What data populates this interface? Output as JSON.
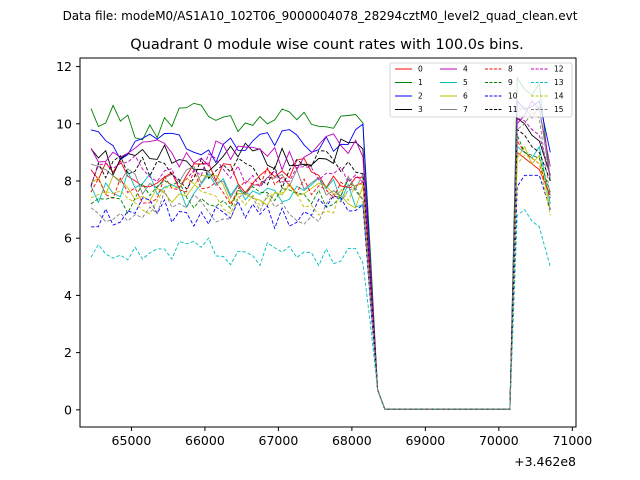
{
  "suptitle": "Data file: modeM0/AS1A10_102T06_9000004078_28294cztM0_level2_quad_clean.evt",
  "chart_data": {
    "type": "line",
    "title": "Quadrant 0 module wise count rates with 100.0s bins.",
    "xlabel": "",
    "ylabel": "",
    "x_offset_label": "+3.462e8",
    "x_ticks": [
      "65000",
      "66000",
      "67000",
      "68000",
      "69000",
      "70000",
      "71000"
    ],
    "y_ticks": [
      "0",
      "2",
      "4",
      "6",
      "8",
      "10",
      "12"
    ],
    "xlim": [
      64300,
      71050
    ],
    "ylim": [
      -0.6,
      12.3
    ],
    "grid": false,
    "legend_position": "top-right",
    "gap_x": [
      68500,
      70000
    ],
    "x_start": 64450,
    "x_step": 100,
    "series": [
      {
        "name": "0",
        "color": "#ff0000",
        "dash": false,
        "base": 8.2,
        "tail": [
          9.0,
          8.8,
          8.6,
          8.4,
          7.5
        ]
      },
      {
        "name": "1",
        "color": "#008000",
        "dash": false,
        "base": 10.1,
        "tail": [
          11.6,
          11.2,
          11.0,
          11.4,
          8.0
        ]
      },
      {
        "name": "2",
        "color": "#0000ff",
        "dash": false,
        "base": 9.3,
        "tail": [
          10.8,
          10.5,
          10.6,
          10.8,
          9.0
        ]
      },
      {
        "name": "3",
        "color": "#000000",
        "dash": false,
        "base": 8.8,
        "tail": [
          10.2,
          10.0,
          9.6,
          9.4,
          8.2
        ]
      },
      {
        "name": "4",
        "color": "#bf00bf",
        "dash": false,
        "base": 9.0,
        "tail": [
          10.0,
          10.3,
          10.8,
          10.5,
          8.5
        ]
      },
      {
        "name": "5",
        "color": "#00bfbf",
        "dash": false,
        "base": 7.7,
        "tail": [
          9.2,
          9.0,
          8.8,
          9.2,
          7.2
        ]
      },
      {
        "name": "6",
        "color": "#bfbf00",
        "dash": false,
        "base": 7.6,
        "tail": [
          8.8,
          9.2,
          8.6,
          8.9,
          7.0
        ]
      },
      {
        "name": "7",
        "color": "#808080",
        "dash": false,
        "base": 8.0,
        "tail": [
          10.4,
          10.6,
          10.2,
          10.6,
          8.0
        ]
      },
      {
        "name": "8",
        "color": "#ff0000",
        "dash": true,
        "base": 7.8,
        "tail": [
          9.4,
          9.0,
          8.8,
          8.6,
          7.4
        ]
      },
      {
        "name": "9",
        "color": "#008000",
        "dash": true,
        "base": 7.5,
        "tail": [
          9.6,
          9.0,
          8.9,
          8.8,
          7.6
        ]
      },
      {
        "name": "10",
        "color": "#0000ff",
        "dash": true,
        "base": 6.9,
        "tail": [
          7.8,
          8.2,
          8.2,
          8.2,
          7.0
        ]
      },
      {
        "name": "11",
        "color": "#000000",
        "dash": true,
        "base": 8.4,
        "tail": [
          9.8,
          9.6,
          9.2,
          9.0,
          8.0
        ]
      },
      {
        "name": "12",
        "color": "#bf00bf",
        "dash": true,
        "base": 8.3,
        "tail": [
          10.2,
          10.1,
          9.8,
          9.6,
          8.2
        ]
      },
      {
        "name": "13",
        "color": "#00bfbf",
        "dash": true,
        "base": 5.5,
        "tail": [
          6.8,
          7.0,
          6.6,
          6.4,
          5.0
        ]
      },
      {
        "name": "14",
        "color": "#bfbf00",
        "dash": true,
        "base": 7.4,
        "tail": [
          8.6,
          8.9,
          8.8,
          8.6,
          6.8
        ]
      },
      {
        "name": "15",
        "color": "#808080",
        "dash": true,
        "base": 7.1,
        "tail": [
          9.8,
          10.0,
          10.4,
          10.2,
          7.4
        ]
      }
    ]
  }
}
